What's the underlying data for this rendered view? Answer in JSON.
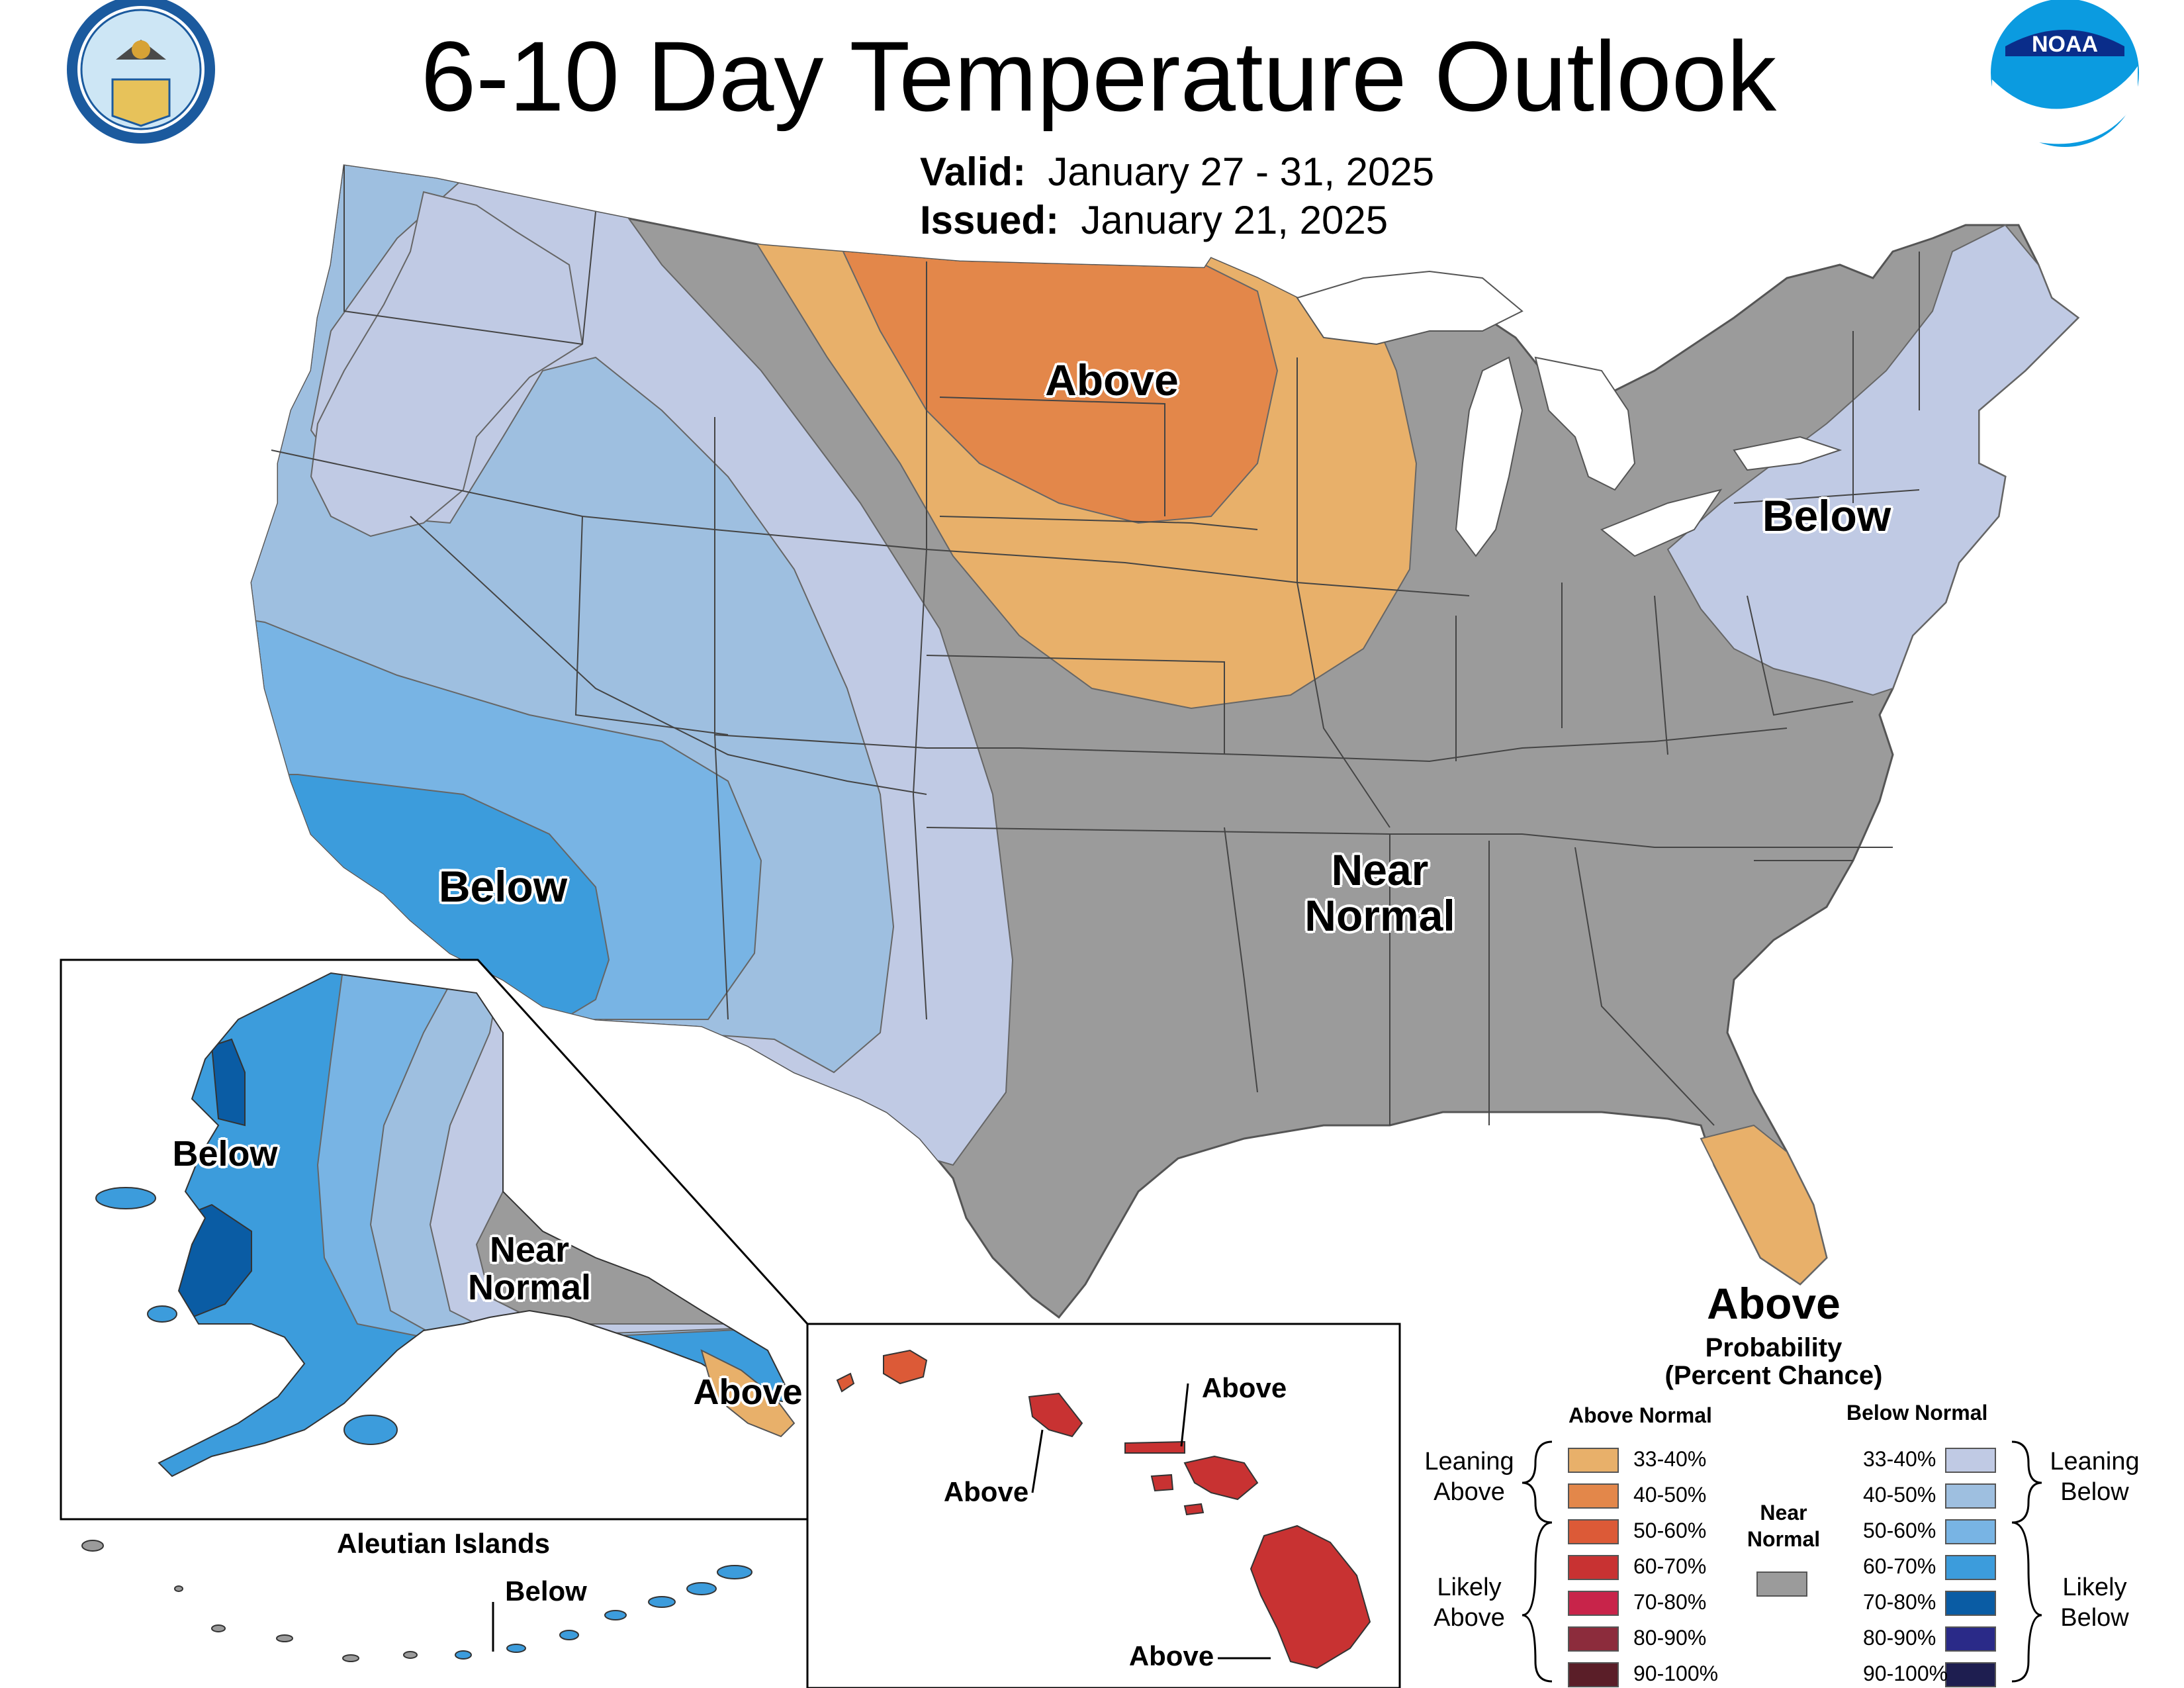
{
  "header": {
    "title": "6-10 Day Temperature Outlook",
    "valid_label": "Valid:",
    "valid_value": "January 27 - 31, 2025",
    "issued_label": "Issued:",
    "issued_value": "January 21, 2025"
  },
  "logos": {
    "commerce_seal_text": "DEPARTMENT OF COMMERCE • UNITED STATES OF AMERICA",
    "noaa_text": "NOAA"
  },
  "map_labels": {
    "conus_above": "Above",
    "conus_below_west": "Below",
    "conus_below_east": "Below",
    "conus_near_line1": "Near",
    "conus_near_line2": "Normal",
    "ak_below": "Below",
    "ak_near_line1": "Near",
    "ak_near_line2": "Normal",
    "ak_above": "Above",
    "aleutian_title": "Aleutian Islands",
    "aleutian_below": "Below",
    "hi_above_1": "Above",
    "hi_above_2": "Above",
    "hi_above_3": "Above"
  },
  "legend": {
    "title": "Above",
    "subtitle_line1": "Probability",
    "subtitle_line2": "(Percent Chance)",
    "above_header": "Above Normal",
    "below_header": "Below Normal",
    "near_line1": "Near",
    "near_line2": "Normal",
    "leaning_above_line1": "Leaning",
    "leaning_above_line2": "Above",
    "likely_above_line1": "Likely",
    "likely_above_line2": "Above",
    "leaning_below_line1": "Leaning",
    "leaning_below_line2": "Below",
    "likely_below_line1": "Likely",
    "likely_below_line2": "Below",
    "above_bins": [
      {
        "range": "33-40%",
        "color": "#e8b06a"
      },
      {
        "range": "40-50%",
        "color": "#e3874a"
      },
      {
        "range": "50-60%",
        "color": "#dc5a37"
      },
      {
        "range": "60-70%",
        "color": "#c83232"
      },
      {
        "range": "70-80%",
        "color": "#c8244a"
      },
      {
        "range": "80-90%",
        "color": "#8c2c3c"
      },
      {
        "range": "90-100%",
        "color": "#5a1e28"
      }
    ],
    "below_bins": [
      {
        "range": "33-40%",
        "color": "#c0cae4"
      },
      {
        "range": "40-50%",
        "color": "#9ebfe0"
      },
      {
        "range": "50-60%",
        "color": "#78b4e4"
      },
      {
        "range": "60-70%",
        "color": "#3c9cdc"
      },
      {
        "range": "70-80%",
        "color": "#0a5ca4"
      },
      {
        "range": "80-90%",
        "color": "#2a2a88"
      },
      {
        "range": "90-100%",
        "color": "#1e1e50"
      }
    ],
    "near_normal_color": "#9b9b9b"
  }
}
